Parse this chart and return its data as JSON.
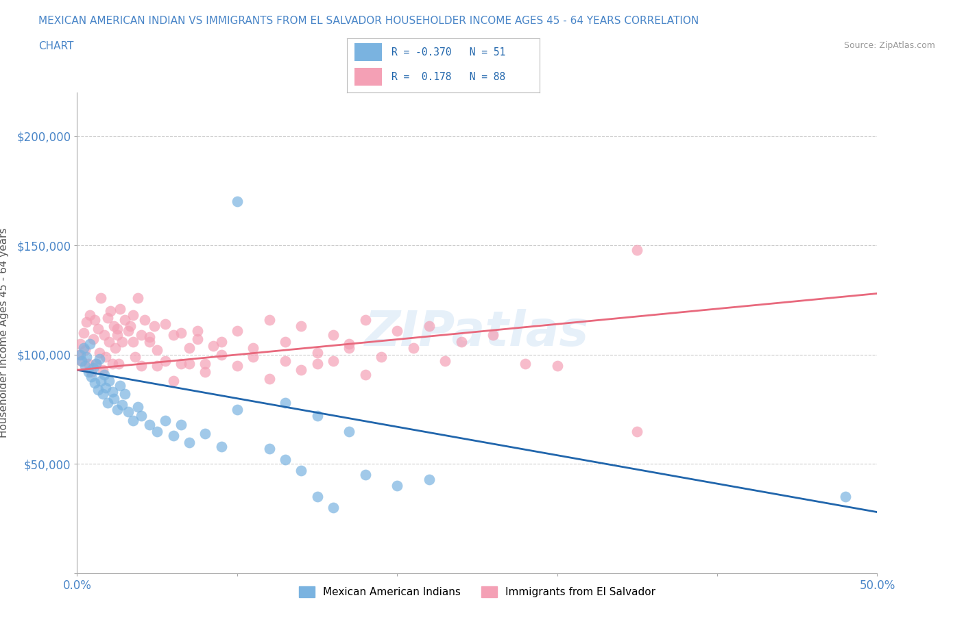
{
  "title_line1": "MEXICAN AMERICAN INDIAN VS IMMIGRANTS FROM EL SALVADOR HOUSEHOLDER INCOME AGES 45 - 64 YEARS CORRELATION",
  "title_line2": "CHART",
  "source_text": "Source: ZipAtlas.com",
  "ylabel": "Householder Income Ages 45 - 64 years",
  "xlim": [
    0.0,
    0.5
  ],
  "ylim": [
    0,
    220000
  ],
  "yticks": [
    0,
    50000,
    100000,
    150000,
    200000
  ],
  "ytick_labels": [
    "",
    "$50,000",
    "$100,000",
    "$150,000",
    "$200,000"
  ],
  "xticks": [
    0.0,
    0.1,
    0.2,
    0.3,
    0.4,
    0.5
  ],
  "xtick_labels": [
    "0.0%",
    "",
    "",
    "",
    "",
    "50.0%"
  ],
  "watermark": "ZIPatlas",
  "blue_R": -0.37,
  "blue_N": 51,
  "pink_R": 0.178,
  "pink_N": 88,
  "blue_color": "#7ab3e0",
  "pink_color": "#f4a0b5",
  "blue_line_color": "#2166ac",
  "pink_line_color": "#e8697d",
  "title_color": "#4a86c8",
  "legend_text_color": "#2166ac",
  "axis_color": "#4a86c8",
  "grid_color": "#cccccc",
  "blue_line_x0": 0.0,
  "blue_line_y0": 93000,
  "blue_line_x1": 0.5,
  "blue_line_y1": 28000,
  "pink_line_x0": 0.0,
  "pink_line_y0": 93000,
  "pink_line_x1": 0.5,
  "pink_line_y1": 128000,
  "blue_scatter_x": [
    0.002,
    0.003,
    0.004,
    0.005,
    0.006,
    0.007,
    0.008,
    0.009,
    0.01,
    0.011,
    0.012,
    0.013,
    0.014,
    0.015,
    0.016,
    0.017,
    0.018,
    0.019,
    0.02,
    0.022,
    0.023,
    0.025,
    0.027,
    0.028,
    0.03,
    0.032,
    0.035,
    0.038,
    0.04,
    0.045,
    0.05,
    0.055,
    0.06,
    0.065,
    0.07,
    0.08,
    0.09,
    0.1,
    0.12,
    0.13,
    0.14,
    0.15,
    0.16,
    0.18,
    0.2,
    0.22,
    0.13,
    0.15,
    0.17,
    0.48,
    0.1
  ],
  "blue_scatter_y": [
    100000,
    97000,
    103000,
    95000,
    99000,
    92000,
    105000,
    90000,
    94000,
    87000,
    96000,
    84000,
    98000,
    88000,
    82000,
    91000,
    85000,
    78000,
    88000,
    83000,
    80000,
    75000,
    86000,
    77000,
    82000,
    74000,
    70000,
    76000,
    72000,
    68000,
    65000,
    70000,
    63000,
    68000,
    60000,
    64000,
    58000,
    170000,
    57000,
    52000,
    47000,
    35000,
    30000,
    45000,
    40000,
    43000,
    78000,
    72000,
    65000,
    35000,
    75000
  ],
  "pink_scatter_x": [
    0.001,
    0.002,
    0.003,
    0.004,
    0.005,
    0.006,
    0.007,
    0.008,
    0.009,
    0.01,
    0.011,
    0.012,
    0.013,
    0.014,
    0.015,
    0.016,
    0.017,
    0.018,
    0.019,
    0.02,
    0.021,
    0.022,
    0.023,
    0.024,
    0.025,
    0.026,
    0.027,
    0.028,
    0.03,
    0.032,
    0.033,
    0.035,
    0.036,
    0.038,
    0.04,
    0.042,
    0.045,
    0.048,
    0.05,
    0.055,
    0.06,
    0.065,
    0.07,
    0.075,
    0.08,
    0.09,
    0.1,
    0.11,
    0.12,
    0.13,
    0.14,
    0.15,
    0.16,
    0.17,
    0.18,
    0.2,
    0.22,
    0.24,
    0.26,
    0.28,
    0.3,
    0.35,
    0.04,
    0.06,
    0.08,
    0.1,
    0.12,
    0.14,
    0.16,
    0.18,
    0.05,
    0.07,
    0.09,
    0.11,
    0.13,
    0.15,
    0.17,
    0.19,
    0.21,
    0.23,
    0.025,
    0.035,
    0.045,
    0.055,
    0.065,
    0.075,
    0.085,
    0.35
  ],
  "pink_scatter_y": [
    100000,
    105000,
    97000,
    110000,
    102000,
    115000,
    96000,
    118000,
    92000,
    107000,
    116000,
    96000,
    112000,
    101000,
    126000,
    93000,
    109000,
    99000,
    117000,
    106000,
    120000,
    96000,
    113000,
    103000,
    109000,
    96000,
    121000,
    106000,
    116000,
    111000,
    113000,
    106000,
    99000,
    126000,
    109000,
    116000,
    106000,
    113000,
    95000,
    97000,
    109000,
    96000,
    103000,
    111000,
    96000,
    106000,
    111000,
    99000,
    116000,
    106000,
    113000,
    96000,
    109000,
    103000,
    116000,
    111000,
    113000,
    106000,
    109000,
    96000,
    95000,
    65000,
    95000,
    88000,
    92000,
    95000,
    89000,
    93000,
    97000,
    91000,
    102000,
    96000,
    100000,
    103000,
    97000,
    101000,
    105000,
    99000,
    103000,
    97000,
    112000,
    118000,
    108000,
    114000,
    110000,
    107000,
    104000,
    148000
  ]
}
